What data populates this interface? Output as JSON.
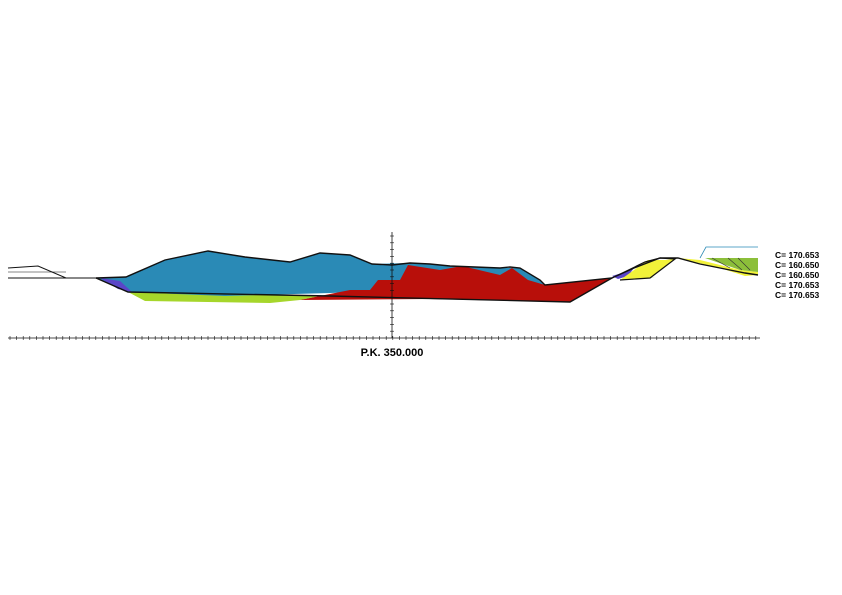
{
  "station_label": "P.K. 350.000",
  "elevations": [
    "C= 170.653",
    "C= 160.650",
    "C= 160.650",
    "C= 170.653",
    "C= 170.653"
  ],
  "colors": {
    "water_blue": "#2A8AB6",
    "rock_red": "#B80F0A",
    "fill_lime": "#A6D62B",
    "fill_yellow": "#F2F23A",
    "liner_purple": "#5A45C8",
    "berm_olive": "#8CBF3A",
    "outline": "#111111"
  }
}
